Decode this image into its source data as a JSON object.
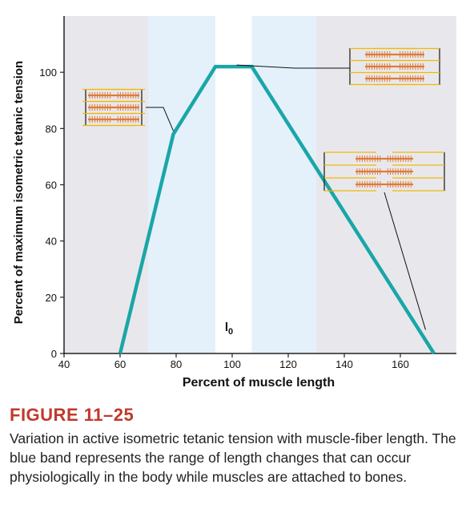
{
  "chart_data": {
    "type": "line",
    "title": "",
    "xlabel": "Percent of muscle length",
    "ylabel": "Percent of maximum isometric tetanic tension",
    "xlim": [
      40,
      180
    ],
    "ylim": [
      0,
      120
    ],
    "x_ticks": [
      40,
      60,
      80,
      100,
      120,
      140,
      160
    ],
    "y_ticks": [
      0,
      20,
      40,
      60,
      80,
      100
    ],
    "series": [
      {
        "name": "Active isometric tetanic tension",
        "color": "#1aa6a8",
        "x": [
          60,
          79,
          94,
          107,
          172
        ],
        "y": [
          0,
          78,
          102,
          102,
          0
        ]
      }
    ],
    "bands": [
      {
        "name": "non-physiological range (short)",
        "x_range": [
          40,
          70
        ],
        "color": "#e8e8ec"
      },
      {
        "name": "physiological range (short side)",
        "x_range": [
          70,
          94
        ],
        "color": "#e4f1fb"
      },
      {
        "name": "optimal length",
        "x_range": [
          94,
          107
        ],
        "color": "#ffffff"
      },
      {
        "name": "physiological range (long side)",
        "x_range": [
          107,
          130
        ],
        "color": "#e4f1fb"
      },
      {
        "name": "non-physiological range (long)",
        "x_range": [
          130,
          180
        ],
        "color": "#e8e8ec"
      }
    ],
    "annotations": [
      {
        "label": "l",
        "subscript": "0",
        "x": 100,
        "y": 8
      }
    ],
    "sarcomere_insets": [
      {
        "name": "short-length sarcomere",
        "points_to": [
          79,
          78
        ]
      },
      {
        "name": "optimal-length sarcomere",
        "points_to": [
          101,
          102
        ]
      },
      {
        "name": "long-length sarcomere",
        "points_to": [
          169,
          9
        ]
      }
    ],
    "colors": {
      "axis": "#222222",
      "thick_filament": "#e07b39",
      "thin_filament": "#f2b705",
      "z_line": "#333333"
    }
  },
  "figure": {
    "label": "FIGURE 11–25",
    "caption": "Variation in active isometric tetanic tension with muscle-fiber length. The blue band represents the range of length changes that can occur physiologically in the body while muscles are attached to bones."
  }
}
